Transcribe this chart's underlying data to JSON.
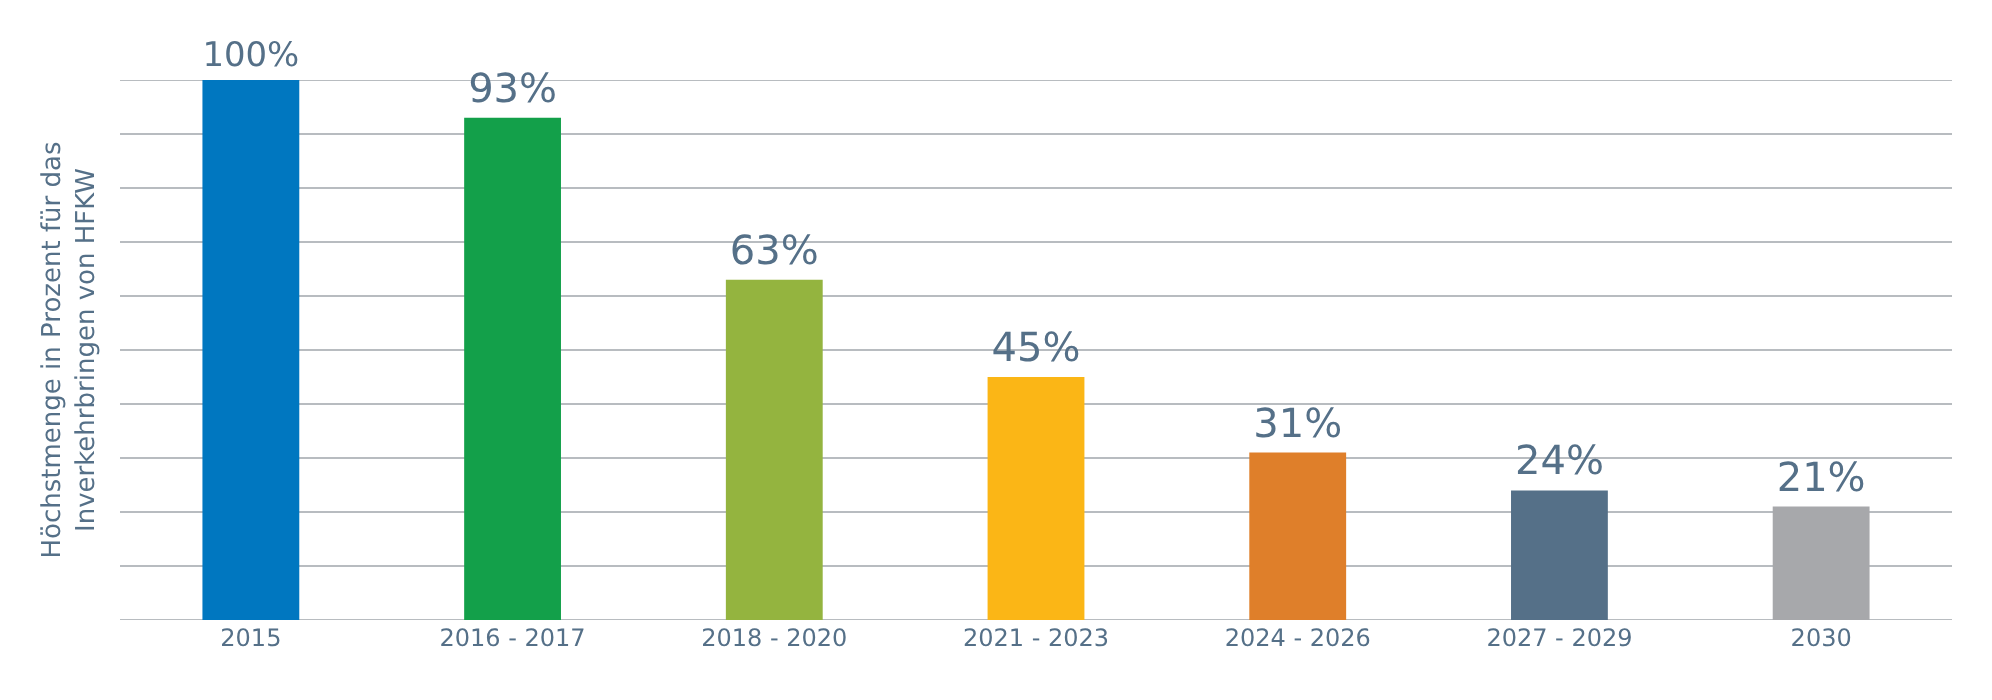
{
  "chart_data": {
    "type": "bar",
    "ylabel": "Höchstmenge in Prozent für das\nInverkehrbringen von HFKW",
    "categories": [
      "2015",
      "2016 - 2017",
      "2018 - 2020",
      "2021 - 2023",
      "2024 - 2026",
      "2027 - 2029",
      "2030"
    ],
    "values": [
      100,
      93,
      63,
      45,
      31,
      24,
      21
    ],
    "colors": [
      "#0077c0",
      "#13a04a",
      "#94b43f",
      "#fbb616",
      "#df7f2a",
      "#557088",
      "#a7a8ab"
    ],
    "value_labels": [
      "100%",
      "93%",
      "63%",
      "45%",
      "31%",
      "24%",
      "21%"
    ],
    "ylim": [
      0,
      100
    ],
    "yticks": [
      {
        "value": 0,
        "label": null
      },
      {
        "value": 10,
        "label": null
      },
      {
        "value": 20,
        "label": null
      },
      {
        "value": 30,
        "label": null
      },
      {
        "value": 40,
        "label": null
      },
      {
        "value": 50,
        "label": null
      },
      {
        "value": 60,
        "label": null
      },
      {
        "value": 70,
        "label": null
      },
      {
        "value": 80,
        "label": null
      },
      {
        "value": 90,
        "label": null
      },
      {
        "value": 100,
        "label": null
      }
    ],
    "grid": "y",
    "tick_labels": "x"
  }
}
